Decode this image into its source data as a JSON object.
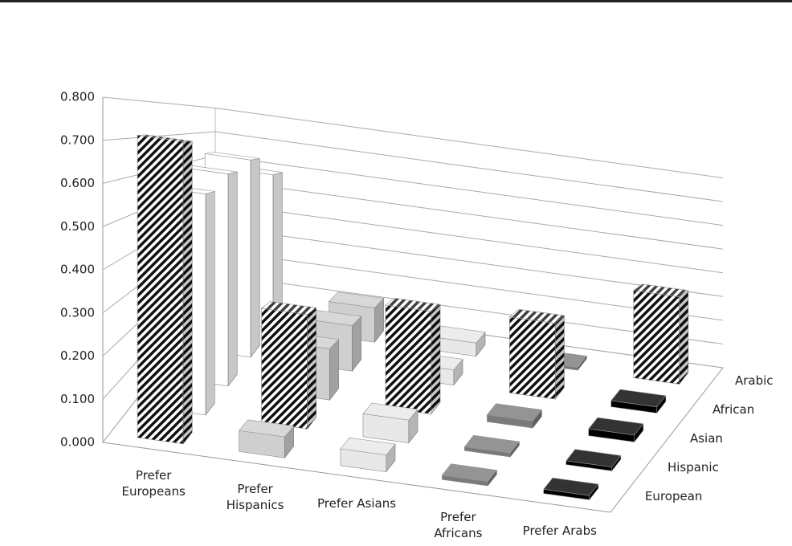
{
  "chart_data": {
    "type": "bar3d",
    "categories": [
      "Prefer Europeans",
      "Prefer Hispanics",
      "Prefer Asians",
      "Prefer Africans",
      "Prefer Arabs"
    ],
    "series": [
      {
        "name": "European",
        "colors": [
          "hatch",
          "#cfcfcf",
          "#e8e8e8",
          "#7a7a7a",
          "#000000"
        ],
        "values": [
          0.72,
          0.05,
          0.04,
          0.01,
          0.01
        ]
      },
      {
        "name": "Hispanic",
        "colors": [
          "#ffffff",
          "hatch",
          "#e8e8e8",
          "#7a7a7a",
          "#000000"
        ],
        "values": [
          0.58,
          0.3,
          0.06,
          0.01,
          0.01
        ]
      },
      {
        "name": "Asian",
        "colors": [
          "#ffffff",
          "#cfcfcf",
          "hatch",
          "#7a7a7a",
          "#000000"
        ],
        "values": [
          0.62,
          0.15,
          0.3,
          0.02,
          0.02
        ]
      },
      {
        "name": "African",
        "colors": [
          "#ffffff",
          "#cfcfcf",
          "#e8e8e8",
          "hatch",
          "#000000"
        ],
        "values": [
          0.65,
          0.15,
          0.05,
          0.25,
          0.02
        ]
      },
      {
        "name": "Arabic",
        "colors": [
          "#ffffff",
          "#cfcfcf",
          "#e8e8e8",
          "#7a7a7a",
          "hatch"
        ],
        "values": [
          0.58,
          0.13,
          0.05,
          0.01,
          0.33
        ]
      }
    ],
    "ylim": [
      0,
      0.8
    ],
    "yticks": [
      {
        "value": 0,
        "label": "0.000"
      },
      {
        "value": 0.1,
        "label": "0.100"
      },
      {
        "value": 0.2,
        "label": "0.200"
      },
      {
        "value": 0.3,
        "label": "0.300"
      },
      {
        "value": 0.4,
        "label": "0.400"
      },
      {
        "value": 0.5,
        "label": "0.500"
      },
      {
        "value": 0.6,
        "label": "0.600"
      },
      {
        "value": 0.7,
        "label": "0.700"
      },
      {
        "value": 0.8,
        "label": "0.800"
      }
    ],
    "grid": true
  }
}
